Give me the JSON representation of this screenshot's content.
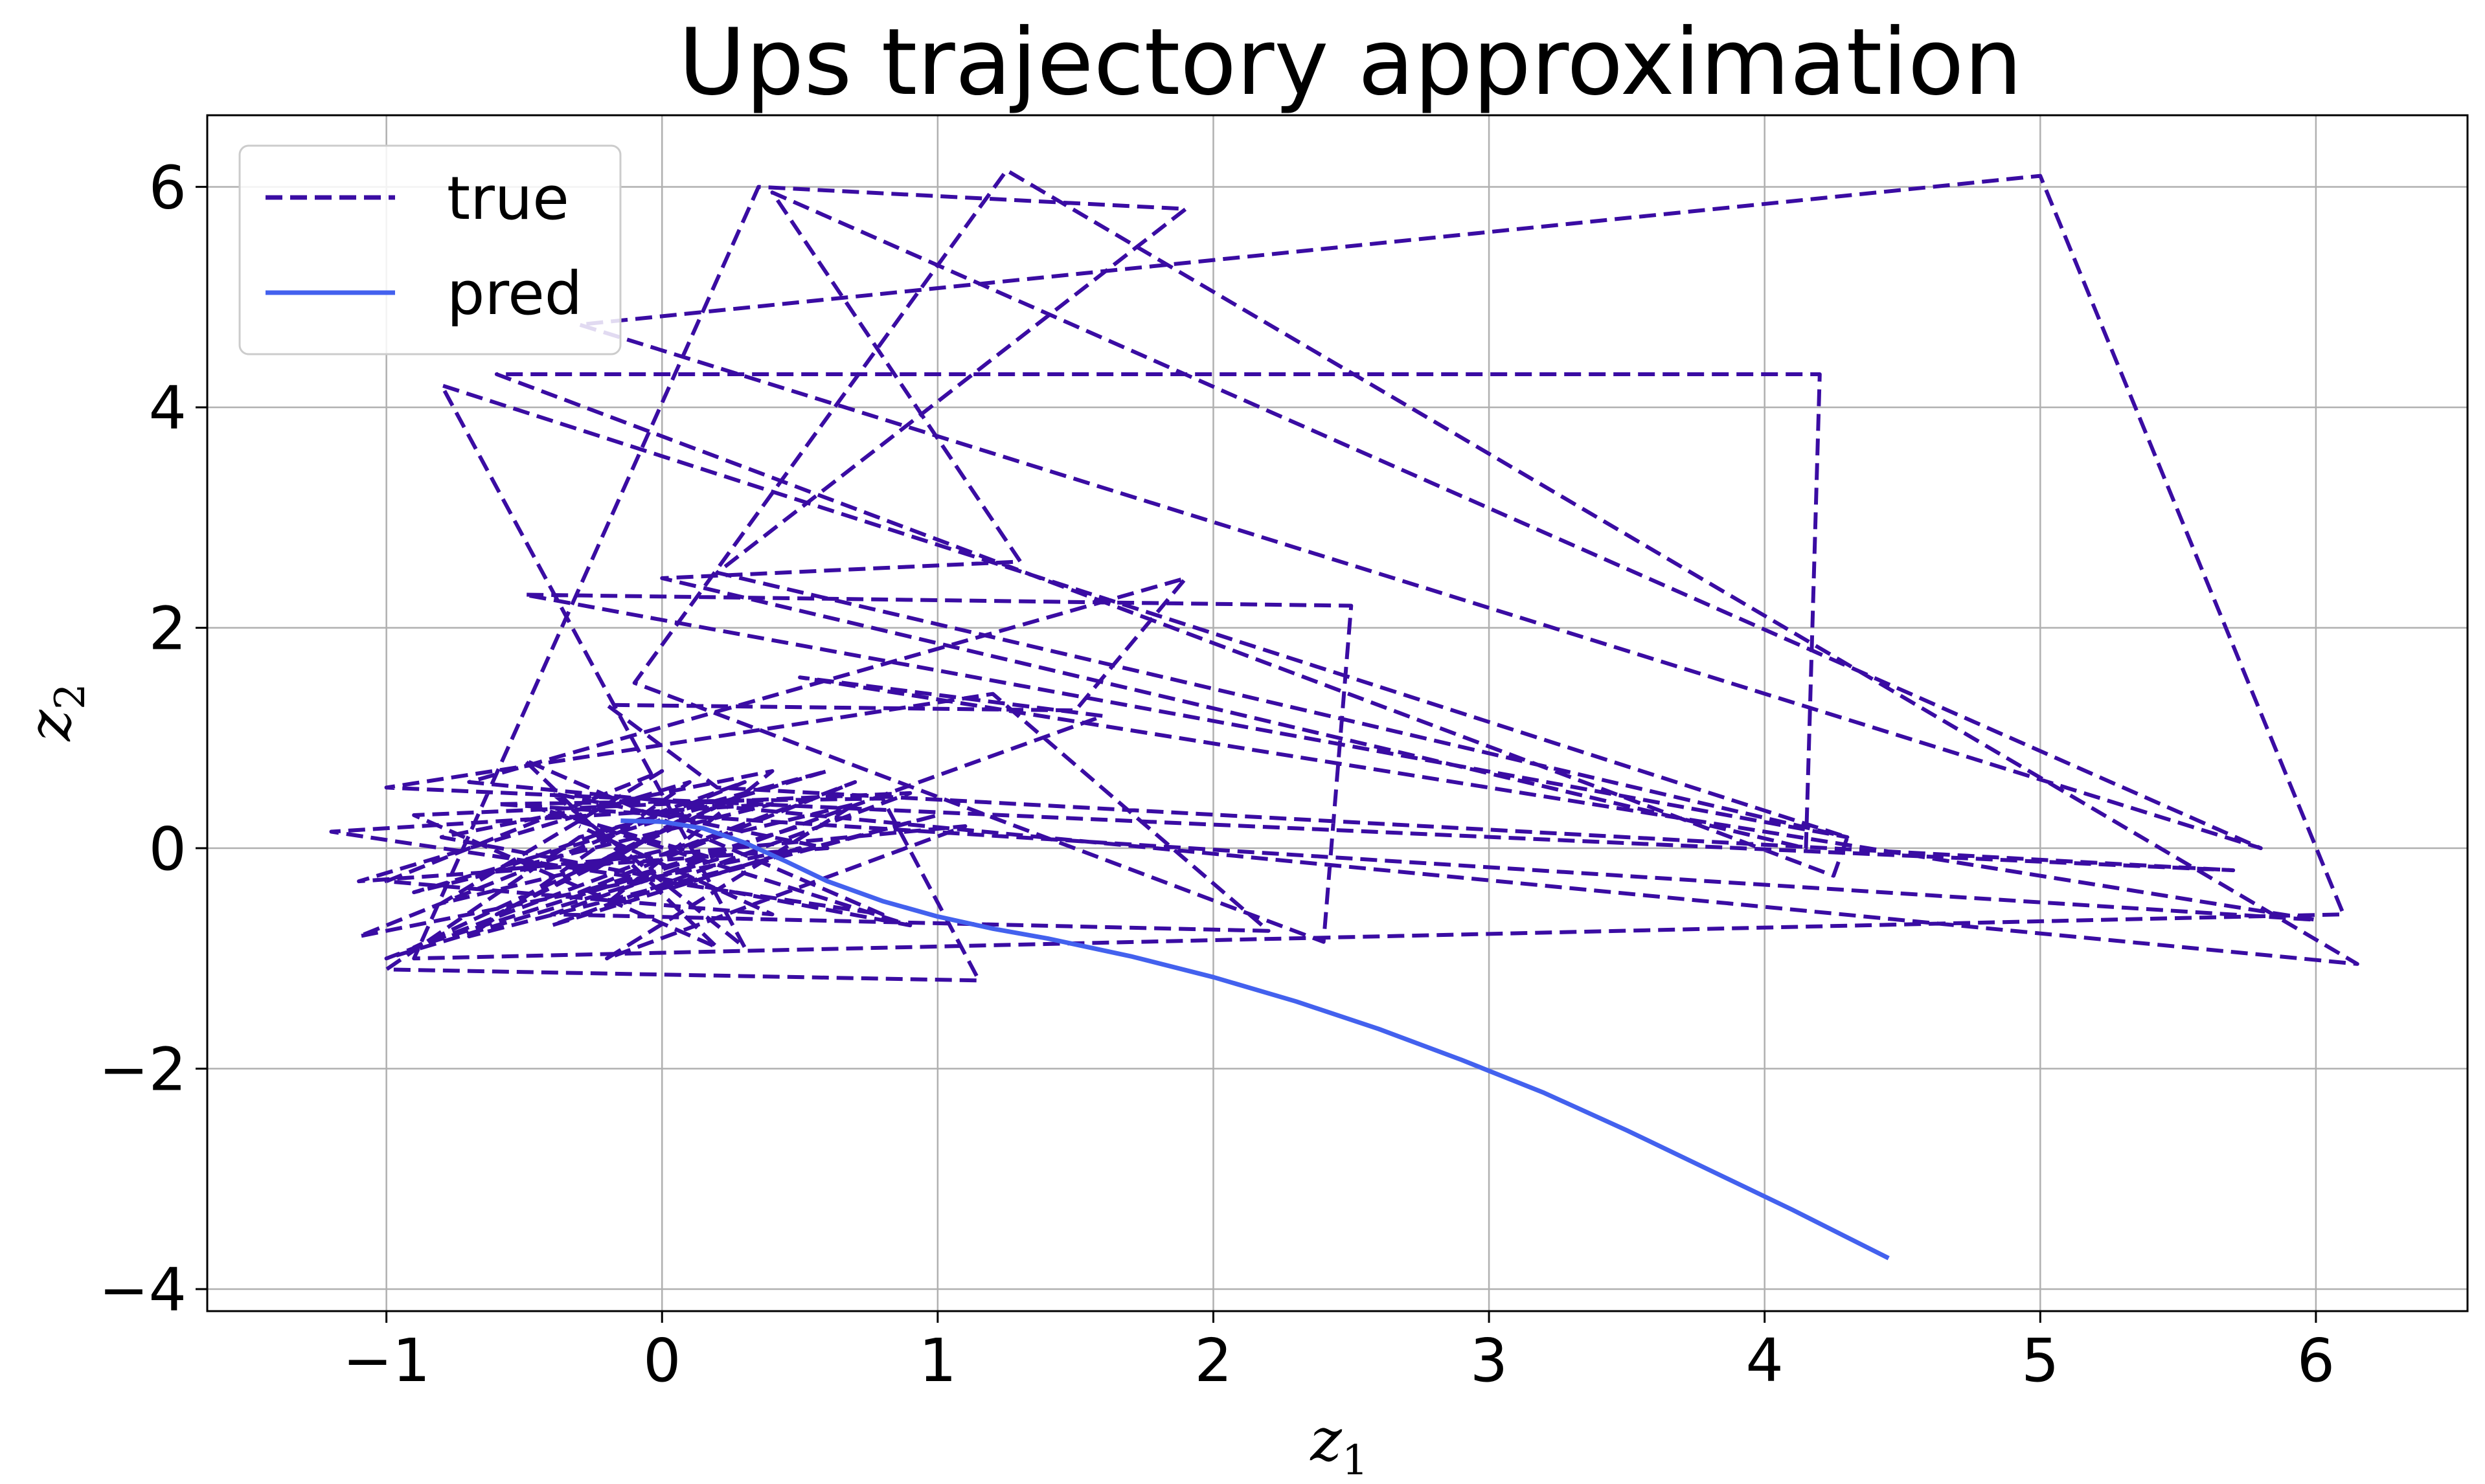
{
  "chart_data": {
    "type": "line",
    "title": "Ups trajectory approximation",
    "xlabel": "z1",
    "ylabel": "z2",
    "xlim": [
      -1.65,
      6.55
    ],
    "ylim": [
      -4.2,
      6.65
    ],
    "xticks": [
      -1,
      0,
      1,
      2,
      3,
      4,
      5,
      6
    ],
    "yticks": [
      -4,
      -2,
      0,
      2,
      4,
      6
    ],
    "xtick_labels": [
      "−1",
      "0",
      "1",
      "2",
      "3",
      "4",
      "5",
      "6"
    ],
    "ytick_labels": [
      "−4",
      "−2",
      "0",
      "2",
      "4",
      "6"
    ],
    "grid": true,
    "legend_position": "top-left",
    "series": [
      {
        "name": "true",
        "color": "#3a0ca3",
        "style": "dashed",
        "x": [
          -0.25,
          0.1,
          -0.6,
          0.3,
          -0.9,
          0.5,
          -0.3,
          0.7,
          -1.0,
          0.2,
          -0.5,
          0.9,
          -0.8,
          0.4,
          -0.2,
          1.0,
          -0.7,
          0.1,
          -1.1,
          0.6,
          -0.4,
          0.3,
          -0.8,
          4.3,
          4.25,
          -0.6,
          4.2,
          4.15,
          0.0,
          1.3,
          0.4,
          5.8,
          -0.3,
          5.0,
          6.1,
          -0.9,
          0.35,
          1.9,
          0.2,
          4.3,
          -0.5,
          2.5,
          2.4,
          -0.1,
          1.25,
          6.15,
          -0.7,
          1.9,
          1.5,
          -0.2,
          0.2,
          5.7,
          -1.0,
          1.2,
          2.2,
          -0.4,
          1.6,
          0.5,
          6.0,
          -0.6,
          0.8,
          1.15,
          -1.0,
          -0.3,
          0.6,
          -0.9,
          0.4,
          -1.2,
          0.8,
          -0.5,
          0.2,
          -0.9,
          0.9,
          -0.4,
          0.5,
          -1.1,
          0.3,
          -0.6,
          1.1,
          -0.2,
          0.7,
          -0.8,
          0.0,
          -1.0,
          0.4,
          -0.3
        ],
        "y": [
          -0.2,
          0.3,
          -0.6,
          0.5,
          -0.9,
          0.2,
          -0.4,
          0.6,
          -1.0,
          -0.1,
          0.4,
          -0.7,
          0.1,
          0.7,
          -0.5,
          0.3,
          -0.8,
          0.6,
          -0.3,
          0.0,
          0.5,
          -0.9,
          4.2,
          0.1,
          -0.25,
          4.3,
          4.3,
          0.0,
          2.45,
          2.6,
          5.95,
          0.0,
          4.75,
          6.1,
          -0.6,
          -1.0,
          6.0,
          5.8,
          2.5,
          0.1,
          2.3,
          2.2,
          -0.85,
          1.5,
          6.15,
          -1.05,
          0.6,
          2.45,
          1.25,
          1.3,
          0.55,
          -0.2,
          0.55,
          1.4,
          -0.75,
          -0.6,
          1.2,
          1.55,
          -0.65,
          0.4,
          0.45,
          -1.2,
          -1.1,
          0.1,
          0.7,
          -0.4,
          0.4,
          0.15,
          -0.6,
          0.8,
          -0.9,
          0.3,
          0.5,
          -0.7,
          0.0,
          -0.8,
          0.6,
          -0.2,
          0.2,
          -1.0,
          0.4,
          -0.5,
          0.7,
          -0.3,
          -0.6,
          0.2
        ]
      },
      {
        "name": "pred",
        "color": "#4361ee",
        "style": "solid",
        "x": [
          -0.15,
          0.0,
          0.15,
          0.3,
          0.45,
          0.6,
          0.8,
          1.0,
          1.2,
          1.4,
          1.7,
          2.0,
          2.3,
          2.6,
          2.9,
          3.2,
          3.5,
          3.8,
          4.1,
          4.45
        ],
        "y": [
          0.25,
          0.24,
          0.18,
          0.05,
          -0.12,
          -0.3,
          -0.48,
          -0.62,
          -0.73,
          -0.82,
          -0.98,
          -1.17,
          -1.39,
          -1.64,
          -1.92,
          -2.22,
          -2.56,
          -2.92,
          -3.28,
          -3.72
        ]
      }
    ]
  }
}
